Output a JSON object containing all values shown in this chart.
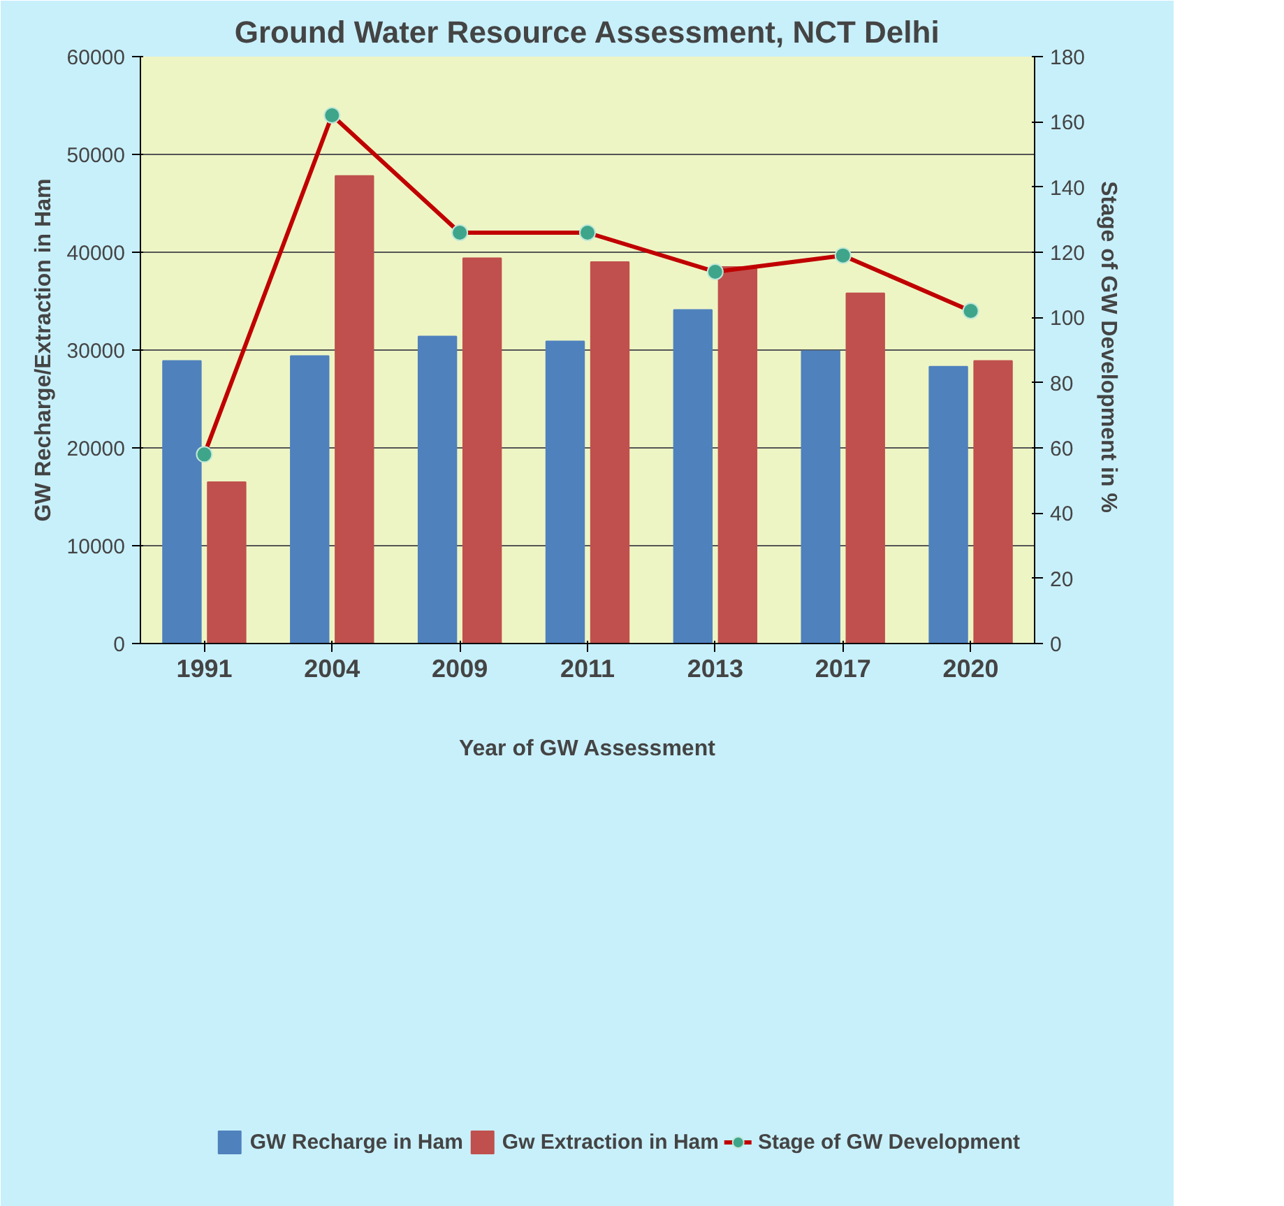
{
  "chart_data": {
    "type": "bar",
    "title": "Ground Water Resource Assessment, NCT Delhi",
    "xlabel": "Year of GW Assessment",
    "ylabel": "GW Recharge/Extraction in Ham",
    "y2label": "Stage of GW Development in  %",
    "categories": [
      "1991",
      "2004",
      "2009",
      "2011",
      "2013",
      "2017",
      "2020"
    ],
    "series": [
      {
        "name": "GW Recharge in Ham",
        "color": "#4f81bd",
        "values": [
          28900,
          29400,
          31400,
          30900,
          34100,
          29900,
          28300
        ]
      },
      {
        "name": "Gw Extraction in Ham",
        "color": "#c0504d",
        "values": [
          16500,
          47800,
          39400,
          39000,
          38500,
          35800,
          28900
        ]
      },
      {
        "name": "Stage of GW Development",
        "color": "#c00000",
        "type": "line",
        "axis": "y2",
        "marker": "circle",
        "values": [
          58,
          162,
          126,
          126,
          114,
          119,
          102
        ]
      }
    ],
    "ylim": [
      0,
      60000
    ],
    "yticks": [
      0,
      10000,
      20000,
      30000,
      40000,
      50000,
      60000
    ],
    "y2lim": [
      0,
      180
    ],
    "y2ticks": [
      0,
      20,
      40,
      60,
      80,
      100,
      120,
      140,
      160,
      180
    ],
    "grid": "y",
    "legend": "bottom"
  }
}
